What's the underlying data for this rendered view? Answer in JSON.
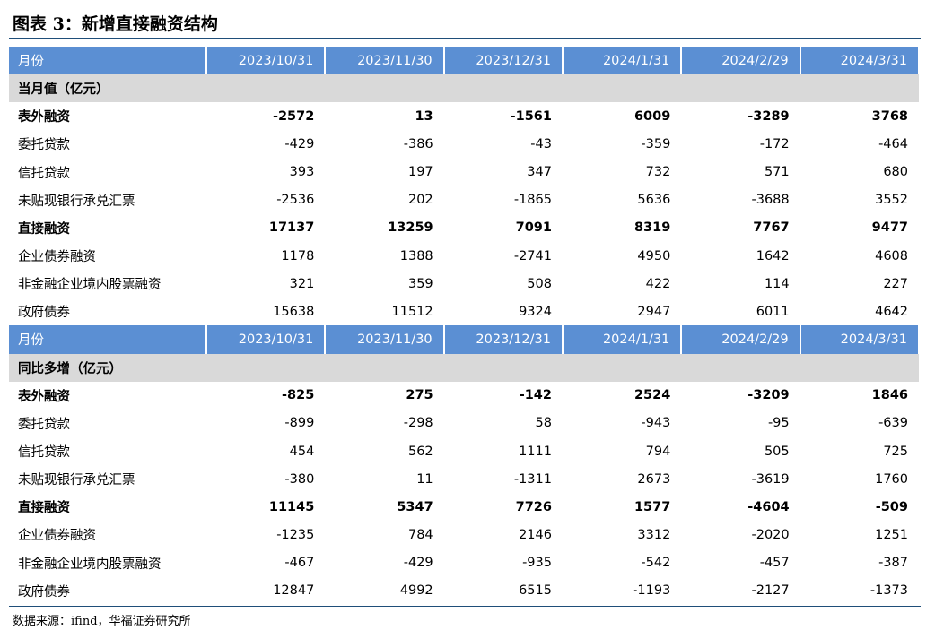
{
  "title": "图表 3：新增直接融资结构",
  "sections": [
    {
      "header": [
        "月份",
        "2023/10/31",
        "2023/11/30",
        "2023/12/31",
        "2024/1/31",
        "2024/2/29",
        "2024/3/31"
      ],
      "group": "当月值（亿元）",
      "rows": [
        {
          "label": "表外融资",
          "bold": true,
          "values": [
            -2572,
            13,
            -1561,
            6009,
            -3289,
            3768
          ]
        },
        {
          "label": "委托贷款",
          "bold": false,
          "values": [
            -429,
            -386,
            -43,
            -359,
            -172,
            -464
          ]
        },
        {
          "label": "信托贷款",
          "bold": false,
          "values": [
            393,
            197,
            347,
            732,
            571,
            680
          ]
        },
        {
          "label": "未贴现银行承兑汇票",
          "bold": false,
          "values": [
            -2536,
            202,
            -1865,
            5636,
            -3688,
            3552
          ]
        },
        {
          "label": "直接融资",
          "bold": true,
          "values": [
            17137,
            13259,
            7091,
            8319,
            7767,
            9477
          ]
        },
        {
          "label": "企业债券融资",
          "bold": false,
          "values": [
            1178,
            1388,
            -2741,
            4950,
            1642,
            4608
          ]
        },
        {
          "label": "非金融企业境内股票融资",
          "bold": false,
          "values": [
            321,
            359,
            508,
            422,
            114,
            227
          ]
        },
        {
          "label": "政府债券",
          "bold": false,
          "values": [
            15638,
            11512,
            9324,
            2947,
            6011,
            4642
          ]
        }
      ]
    },
    {
      "header": [
        "月份",
        "2023/10/31",
        "2023/11/30",
        "2023/12/31",
        "2024/1/31",
        "2024/2/29",
        "2024/3/31"
      ],
      "group": "同比多增（亿元）",
      "rows": [
        {
          "label": "表外融资",
          "bold": true,
          "values": [
            -825,
            275,
            -142,
            2524,
            -3209,
            1846
          ]
        },
        {
          "label": "委托贷款",
          "bold": false,
          "values": [
            -899,
            -298,
            58,
            -943,
            -95,
            -639
          ]
        },
        {
          "label": "信托贷款",
          "bold": false,
          "values": [
            454,
            562,
            1111,
            794,
            505,
            725
          ]
        },
        {
          "label": "未贴现银行承兑汇票",
          "bold": false,
          "values": [
            -380,
            11,
            -1311,
            2673,
            -3619,
            1760
          ]
        },
        {
          "label": "直接融资",
          "bold": true,
          "values": [
            11145,
            5347,
            7726,
            1577,
            -4604,
            -509
          ]
        },
        {
          "label": "企业债券融资",
          "bold": false,
          "values": [
            -1235,
            784,
            2146,
            3312,
            -2020,
            1251
          ]
        },
        {
          "label": "非金融企业境内股票融资",
          "bold": false,
          "values": [
            -467,
            -429,
            -935,
            -542,
            -457,
            -387
          ]
        },
        {
          "label": "政府债券",
          "bold": false,
          "values": [
            12847,
            4992,
            6515,
            -1193,
            -2127,
            -1373
          ]
        }
      ]
    }
  ],
  "source": "数据来源：ifind，华福证券研究所"
}
